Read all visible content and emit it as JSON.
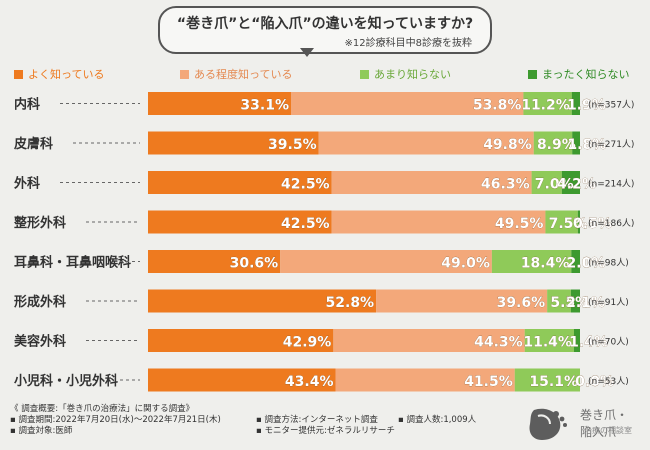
{
  "title": "“巻き爪”と“陥入爪”の違いを知っていますか?",
  "subtitle": "※12診療科目中8診療を抜粋",
  "colors": {
    "well": "#ee7a1f",
    "somewhat": "#f3a87a",
    "little": "#8fca59",
    "none": "#3d9a2f",
    "gap": "#e7e7e2"
  },
  "legend": [
    {
      "key": "well",
      "label": "よく知っている"
    },
    {
      "key": "somewhat",
      "label": "ある程度知っている"
    },
    {
      "key": "little",
      "label": "あまり知らない"
    },
    {
      "key": "none",
      "label": "まったく知らない"
    }
  ],
  "chart_data": {
    "type": "bar",
    "orientation": "horizontal-stacked",
    "unit": "%",
    "categories": [
      "内科",
      "皮膚科",
      "外科",
      "整形外科",
      "耳鼻科・耳鼻咽喉科",
      "形成外科",
      "美容外科",
      "小児科・小児外科"
    ],
    "n_labels": [
      "(n=357人)",
      "(n=271人)",
      "(n=214人)",
      "(n=186人)",
      "(n=98人)",
      "(n=91人)",
      "(n=70人)",
      "(n=53人)"
    ],
    "series": [
      {
        "name": "よく知っている",
        "values": [
          33.1,
          39.5,
          42.5,
          42.5,
          30.6,
          52.8,
          42.9,
          43.4
        ]
      },
      {
        "name": "ある程度知っている",
        "values": [
          53.8,
          49.8,
          46.3,
          49.5,
          49.0,
          39.6,
          44.3,
          41.5
        ]
      },
      {
        "name": "あまり知らない",
        "values": [
          11.2,
          8.9,
          7.0,
          7.5,
          18.4,
          5.5,
          11.4,
          15.1
        ]
      },
      {
        "name": "まったく知らない",
        "values": [
          1.9,
          1.8,
          4.2,
          0.5,
          2.0,
          2.1,
          1.4,
          0.0
        ]
      }
    ],
    "value_labels": [
      [
        "33.1%",
        "53.8%",
        "11.2%",
        "1.9%"
      ],
      [
        "39.5%",
        "49.8%",
        "8.9%",
        "1.8%"
      ],
      [
        "42.5%",
        "46.3%",
        "7.0%",
        "4.2%"
      ],
      [
        "42.5%",
        "49.5%",
        "7.5%",
        "0.5%"
      ],
      [
        "30.6%",
        "49.0%",
        "18.4%",
        "2.0%"
      ],
      [
        "52.8%",
        "39.6%",
        "5.5%",
        "2.1%"
      ],
      [
        "42.9%",
        "44.3%",
        "11.4%",
        "1.4%"
      ],
      [
        "43.4%",
        "41.5%",
        "15.1%",
        "0.0%"
      ]
    ],
    "xlim": [
      0,
      100
    ],
    "legend_position": "top"
  },
  "footer": {
    "line1": "《 調査概要:「巻き爪の治療法」に関する調査》",
    "period": "▪ 調査期間:2022年7月20日(水)〜2022年7月21日(木)",
    "target": "▪ 調査対象:医師",
    "method": "▪ 調査方法:インターネット調査",
    "monitor": "▪ モニター提供元:ゼネラルリサーチ",
    "count": "▪ 調査人数:1,009人"
  },
  "logo": {
    "line1": "巻き爪・陥入爪",
    "line2": "治療の相談室"
  }
}
